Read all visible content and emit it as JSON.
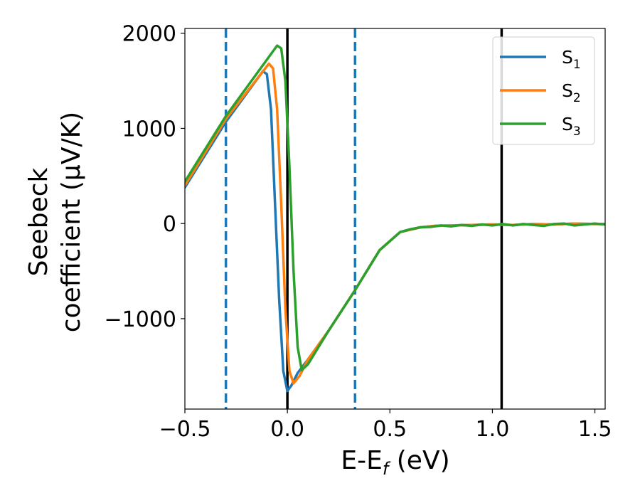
{
  "chart_data": {
    "type": "line",
    "xlabel": "E-E",
    "xlabel_sub": "f",
    "xlabel_unit": " (eV)",
    "ylabel_line1": "Seebeck",
    "ylabel_line2": "coefficient  (μV/K)",
    "xlim": [
      -0.5,
      1.55
    ],
    "ylim": [
      -1950,
      2050
    ],
    "x_ticks": [
      -0.5,
      0.0,
      0.5,
      1.0,
      1.5
    ],
    "x_tick_labels": [
      "−0.5",
      "0.0",
      "0.5",
      "1.0",
      "1.5"
    ],
    "y_ticks": [
      2000,
      1000,
      0,
      -1000
    ],
    "y_tick_labels": [
      "2000",
      "1000",
      "0",
      "−1000"
    ],
    "grid": false,
    "legend_position": "top-right",
    "vertical_lines": [
      {
        "x": -0.3,
        "style": "dashed",
        "color": "#1f77b4"
      },
      {
        "x": 0.33,
        "style": "dashed",
        "color": "#1f77b4"
      },
      {
        "x": 0.0,
        "style": "solid",
        "color": "#000000"
      },
      {
        "x": 1.045,
        "style": "solid",
        "color": "#000000"
      }
    ],
    "series": [
      {
        "name": "S",
        "sub": "1",
        "color": "#1f77b4",
        "points": [
          [
            -0.5,
            380
          ],
          [
            -0.3,
            1070
          ],
          [
            -0.12,
            1600
          ],
          [
            -0.1,
            1570
          ],
          [
            -0.08,
            1200
          ],
          [
            -0.06,
            200
          ],
          [
            -0.04,
            -800
          ],
          [
            -0.02,
            -1550
          ],
          [
            0.0,
            -1760
          ],
          [
            0.02,
            -1700
          ],
          [
            0.05,
            -1570
          ],
          [
            0.1,
            -1430
          ],
          [
            0.2,
            -1130
          ],
          [
            0.33,
            -700
          ],
          [
            0.45,
            -280
          ],
          [
            0.55,
            -90
          ],
          [
            0.65,
            -40
          ],
          [
            0.72,
            -25
          ],
          [
            0.8,
            -20
          ],
          [
            0.9,
            -15
          ],
          [
            1.0,
            -10
          ],
          [
            1.1,
            -15
          ],
          [
            1.2,
            -5
          ],
          [
            1.3,
            -10
          ],
          [
            1.4,
            0
          ],
          [
            1.5,
            -5
          ],
          [
            1.55,
            -5
          ]
        ]
      },
      {
        "name": "S",
        "sub": "2",
        "color": "#ff7f0e",
        "points": [
          [
            -0.5,
            400
          ],
          [
            -0.3,
            1100
          ],
          [
            -0.09,
            1680
          ],
          [
            -0.07,
            1630
          ],
          [
            -0.05,
            1200
          ],
          [
            -0.03,
            200
          ],
          [
            -0.01,
            -900
          ],
          [
            0.01,
            -1550
          ],
          [
            0.03,
            -1680
          ],
          [
            0.06,
            -1600
          ],
          [
            0.1,
            -1430
          ],
          [
            0.2,
            -1130
          ],
          [
            0.33,
            -700
          ],
          [
            0.45,
            -280
          ],
          [
            0.55,
            -90
          ],
          [
            0.65,
            -40
          ],
          [
            0.72,
            -25
          ],
          [
            0.8,
            -20
          ],
          [
            0.9,
            -15
          ],
          [
            1.0,
            -10
          ],
          [
            1.1,
            -15
          ],
          [
            1.2,
            -5
          ],
          [
            1.3,
            -10
          ],
          [
            1.4,
            0
          ],
          [
            1.5,
            -5
          ],
          [
            1.55,
            -5
          ]
        ]
      },
      {
        "name": "S",
        "sub": "3",
        "color": "#2ca02c",
        "points": [
          [
            -0.5,
            440
          ],
          [
            -0.3,
            1130
          ],
          [
            -0.05,
            1870
          ],
          [
            -0.03,
            1840
          ],
          [
            -0.01,
            1500
          ],
          [
            0.01,
            600
          ],
          [
            0.03,
            -500
          ],
          [
            0.05,
            -1300
          ],
          [
            0.07,
            -1540
          ],
          [
            0.1,
            -1480
          ],
          [
            0.2,
            -1130
          ],
          [
            0.33,
            -700
          ],
          [
            0.45,
            -280
          ],
          [
            0.55,
            -90
          ],
          [
            0.6,
            -60
          ],
          [
            0.65,
            -40
          ],
          [
            0.7,
            -35
          ],
          [
            0.75,
            -20
          ],
          [
            0.8,
            -30
          ],
          [
            0.85,
            -15
          ],
          [
            0.9,
            -25
          ],
          [
            0.95,
            -10
          ],
          [
            1.0,
            -20
          ],
          [
            1.05,
            -5
          ],
          [
            1.1,
            -20
          ],
          [
            1.15,
            -5
          ],
          [
            1.2,
            -15
          ],
          [
            1.25,
            -25
          ],
          [
            1.3,
            -5
          ],
          [
            1.35,
            0
          ],
          [
            1.4,
            -20
          ],
          [
            1.45,
            -10
          ],
          [
            1.5,
            0
          ],
          [
            1.55,
            -10
          ]
        ]
      }
    ]
  }
}
